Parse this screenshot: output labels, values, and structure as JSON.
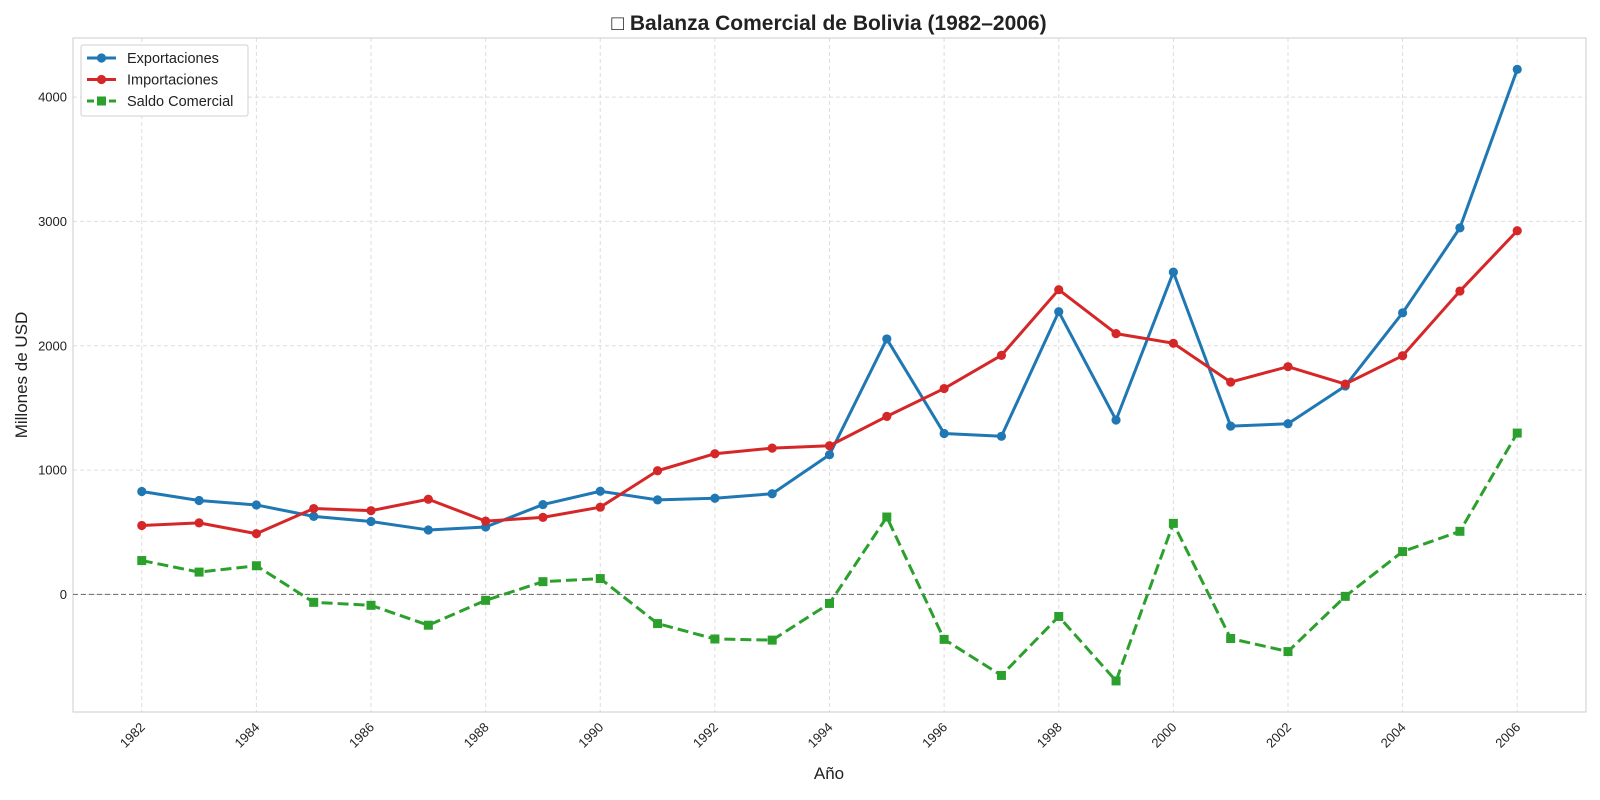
{
  "chart_data": {
    "type": "line",
    "title": "□ Balanza Comercial de Bolivia (1982–2006)",
    "xlabel": "Año",
    "ylabel": "Millones de USD",
    "x": [
      1982,
      1983,
      1984,
      1985,
      1986,
      1987,
      1988,
      1989,
      1990,
      1991,
      1992,
      1993,
      1994,
      1995,
      1996,
      1997,
      1998,
      1999,
      2000,
      2001,
      2002,
      2003,
      2004,
      2005,
      2006
    ],
    "x_ticks": [
      1982,
      1984,
      1986,
      1988,
      1990,
      1992,
      1994,
      1996,
      1998,
      2000,
      2002,
      2004,
      2006
    ],
    "y_ticks": [
      0,
      1000,
      2000,
      3000,
      4000
    ],
    "xlim": [
      1980.8,
      2007.2
    ],
    "ylim": [
      -945,
      4475
    ],
    "grid": true,
    "legend_position": "top-left",
    "reference_line": {
      "y": 0,
      "style": "dashed",
      "color": "#777777"
    },
    "series": [
      {
        "name": "Exportaciones",
        "color": "#1f77b4",
        "marker": "circle",
        "line_style": "solid",
        "values": [
          828,
          756,
          720,
          628,
          587,
          519,
          543,
          723,
          830,
          761,
          774,
          810,
          1124,
          2055,
          1295,
          1272,
          2274,
          1403,
          2592,
          1354,
          1373,
          1677,
          2265,
          2948,
          4223
        ]
      },
      {
        "name": "Importaciones",
        "color": "#d62728",
        "marker": "circle",
        "line_style": "solid",
        "values": [
          555,
          576,
          489,
          691,
          674,
          766,
          590,
          620,
          702,
          995,
          1132,
          1177,
          1196,
          1432,
          1656,
          1923,
          2451,
          2098,
          2020,
          1708,
          1832,
          1692,
          1920,
          2440,
          2925
        ]
      },
      {
        "name": "Saldo Comercial",
        "color": "#2ca02c",
        "marker": "square",
        "line_style": "dashed",
        "values": [
          273,
          180,
          231,
          -63,
          -87,
          -247,
          -47,
          103,
          128,
          -234,
          -358,
          -367,
          -72,
          623,
          -361,
          -651,
          -177,
          -695,
          572,
          -354,
          -459,
          -15,
          345,
          508,
          1298
        ]
      }
    ]
  }
}
